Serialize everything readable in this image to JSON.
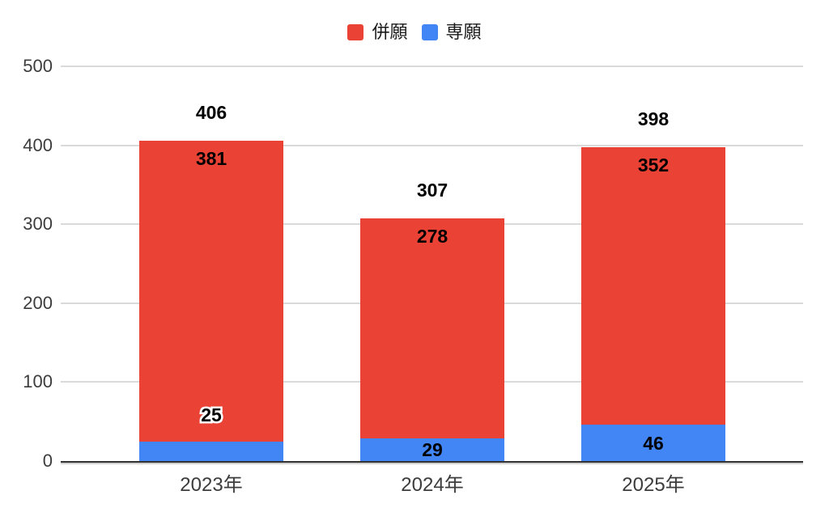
{
  "chart_data": {
    "type": "bar",
    "stacked": true,
    "title": "",
    "xlabel": "",
    "ylabel": "",
    "categories": [
      "2023年",
      "2024年",
      "2025年"
    ],
    "series": [
      {
        "name": "併願",
        "color": "#EA4335",
        "values": [
          381,
          278,
          352
        ]
      },
      {
        "name": "専願",
        "color": "#4285F4",
        "values": [
          25,
          29,
          46
        ]
      }
    ],
    "totals": [
      406,
      307,
      398
    ],
    "ylim": [
      0,
      500
    ],
    "yticks": [
      0,
      100,
      200,
      300,
      400,
      500
    ],
    "grid": "horizontal",
    "legend_position": "top",
    "colors": {
      "gridline": "#dadada",
      "axis_line": "#333333",
      "label_text": "#000000",
      "tick_text": "#3c3c3c"
    }
  }
}
